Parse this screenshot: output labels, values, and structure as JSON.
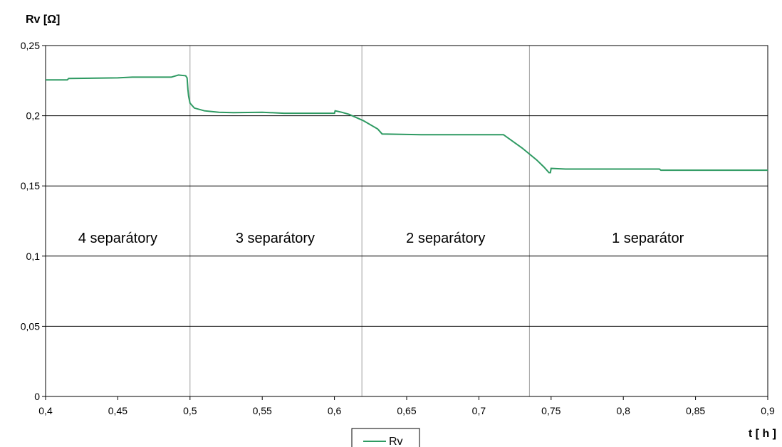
{
  "chart_data": {
    "type": "line",
    "ylabel": "Rv [Ω]",
    "xlabel": "t [ h ]",
    "xlim": [
      0.4,
      0.9
    ],
    "ylim": [
      0,
      0.25
    ],
    "x_ticks": [
      "0,4",
      "0,45",
      "0,5",
      "0,55",
      "0,6",
      "0,65",
      "0,7",
      "0,75",
      "0,8",
      "0,85",
      "0,9"
    ],
    "y_ticks": [
      "0",
      "0,05",
      "0,1",
      "0,15",
      "0,2",
      "0,25"
    ],
    "grid": "horizontal",
    "legend": "bottom-center",
    "colors": {
      "series": "#2e9a62",
      "grid": "#000000",
      "divider": "#a0a0a0"
    },
    "dividers": [
      0.5,
      0.619,
      0.735
    ],
    "regions": [
      {
        "label": "4 separátory",
        "x_center": 0.45
      },
      {
        "label": "3 separátory",
        "x_center": 0.559
      },
      {
        "label": "2 separátory",
        "x_center": 0.677
      },
      {
        "label": "1 separátor",
        "x_center": 0.817
      }
    ],
    "series": [
      {
        "name": "Rv",
        "points": [
          [
            0.4,
            0.2255
          ],
          [
            0.415,
            0.2255
          ],
          [
            0.416,
            0.2265
          ],
          [
            0.45,
            0.227
          ],
          [
            0.46,
            0.2275
          ],
          [
            0.487,
            0.2275
          ],
          [
            0.492,
            0.229
          ],
          [
            0.497,
            0.2285
          ],
          [
            0.498,
            0.227
          ],
          [
            0.4985,
            0.219
          ],
          [
            0.499,
            0.214
          ],
          [
            0.5,
            0.209
          ],
          [
            0.503,
            0.2055
          ],
          [
            0.51,
            0.2035
          ],
          [
            0.52,
            0.2025
          ],
          [
            0.53,
            0.2022
          ],
          [
            0.55,
            0.2025
          ],
          [
            0.565,
            0.2018
          ],
          [
            0.6,
            0.2018
          ],
          [
            0.6005,
            0.2035
          ],
          [
            0.605,
            0.2025
          ],
          [
            0.61,
            0.201
          ],
          [
            0.62,
            0.1965
          ],
          [
            0.63,
            0.1905
          ],
          [
            0.633,
            0.187
          ],
          [
            0.66,
            0.1865
          ],
          [
            0.717,
            0.1865
          ],
          [
            0.73,
            0.177
          ],
          [
            0.74,
            0.1685
          ],
          [
            0.745,
            0.1635
          ],
          [
            0.7485,
            0.1595
          ],
          [
            0.7495,
            0.1595
          ],
          [
            0.75,
            0.1625
          ],
          [
            0.76,
            0.162
          ],
          [
            0.8,
            0.162
          ],
          [
            0.825,
            0.162
          ],
          [
            0.826,
            0.1612
          ],
          [
            0.9,
            0.1612
          ]
        ]
      }
    ]
  }
}
